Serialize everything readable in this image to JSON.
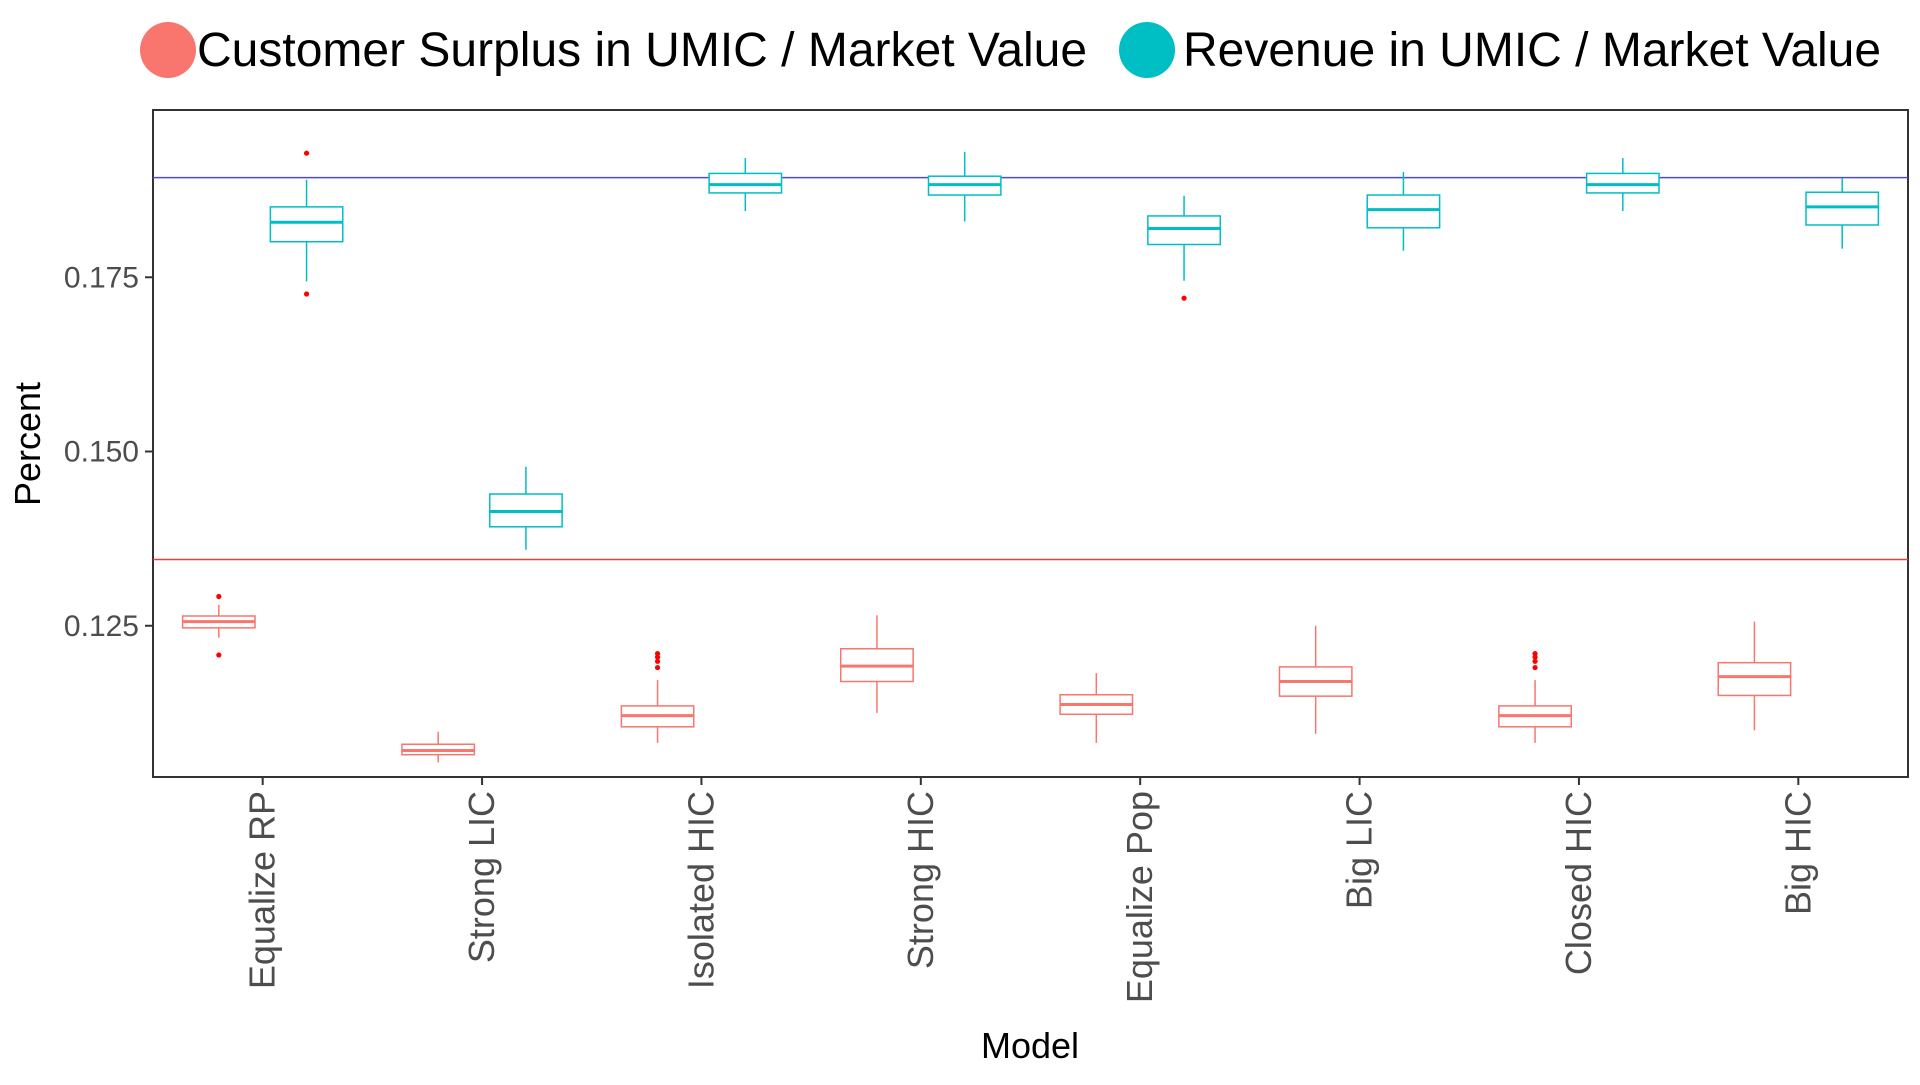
{
  "chart_data": {
    "type": "boxplot",
    "title": "",
    "xlabel": "Model",
    "ylabel": "Percent",
    "ylim": [
      0.1033,
      0.199
    ],
    "yticks": [
      0.125,
      0.15,
      0.175
    ],
    "ytick_labels": [
      "0.125",
      "0.150",
      "0.175"
    ],
    "grid": false,
    "legend_position": "top",
    "categories": [
      "Equalize RP",
      "Strong LIC",
      "Isolated HIC",
      "Strong HIC",
      "Equalize Pop",
      "Big LIC",
      "Closed HIC",
      "Big HIC"
    ],
    "series": [
      {
        "name": "Customer Surplus in UMIC / Market Value",
        "color": "#F8766D",
        "boxes": [
          {
            "min": 0.1233,
            "q1": 0.1247,
            "median": 0.1256,
            "q3": 0.1264,
            "max": 0.128,
            "outliers": [
              0.1292,
              0.1208
            ]
          },
          {
            "min": 0.1054,
            "q1": 0.1065,
            "median": 0.1071,
            "q3": 0.108,
            "max": 0.1098,
            "outliers": []
          },
          {
            "min": 0.1082,
            "q1": 0.1105,
            "median": 0.1121,
            "q3": 0.1135,
            "max": 0.1172,
            "outliers": [
              0.119,
              0.1199,
              0.1205,
              0.121
            ]
          },
          {
            "min": 0.1125,
            "q1": 0.117,
            "median": 0.1192,
            "q3": 0.1217,
            "max": 0.1265,
            "outliers": []
          },
          {
            "min": 0.1082,
            "q1": 0.1123,
            "median": 0.1137,
            "q3": 0.1151,
            "max": 0.1182,
            "outliers": []
          },
          {
            "min": 0.1095,
            "q1": 0.1149,
            "median": 0.117,
            "q3": 0.1191,
            "max": 0.125,
            "outliers": []
          },
          {
            "min": 0.1082,
            "q1": 0.1105,
            "median": 0.1121,
            "q3": 0.1135,
            "max": 0.1172,
            "outliers": [
              0.119,
              0.1199,
              0.1205,
              0.121
            ]
          },
          {
            "min": 0.11,
            "q1": 0.115,
            "median": 0.1177,
            "q3": 0.1197,
            "max": 0.1256,
            "outliers": []
          }
        ]
      },
      {
        "name": "Revenue in UMIC / Market Value",
        "color": "#00BFC4",
        "boxes": [
          {
            "min": 0.1744,
            "q1": 0.1801,
            "median": 0.1829,
            "q3": 0.1851,
            "max": 0.189,
            "outliers": [
              0.1928,
              0.1726
            ]
          },
          {
            "min": 0.1359,
            "q1": 0.1392,
            "median": 0.1414,
            "q3": 0.1439,
            "max": 0.1478,
            "outliers": []
          },
          {
            "min": 0.1845,
            "q1": 0.1871,
            "median": 0.1883,
            "q3": 0.1899,
            "max": 0.1921,
            "outliers": []
          },
          {
            "min": 0.183,
            "q1": 0.1868,
            "median": 0.1883,
            "q3": 0.1895,
            "max": 0.193,
            "outliers": []
          },
          {
            "min": 0.1745,
            "q1": 0.1797,
            "median": 0.182,
            "q3": 0.1838,
            "max": 0.1867,
            "outliers": [
              0.172
            ]
          },
          {
            "min": 0.1788,
            "q1": 0.1821,
            "median": 0.1847,
            "q3": 0.1868,
            "max": 0.1901,
            "outliers": []
          },
          {
            "min": 0.1845,
            "q1": 0.1871,
            "median": 0.1883,
            "q3": 0.1899,
            "max": 0.1921,
            "outliers": []
          },
          {
            "min": 0.1791,
            "q1": 0.1825,
            "median": 0.1851,
            "q3": 0.1872,
            "max": 0.1892,
            "outliers": []
          }
        ]
      }
    ],
    "reference_lines": [
      {
        "value": 0.1345,
        "color": "#E0443C"
      },
      {
        "value": 0.1893,
        "color": "#4B4BD6"
      }
    ],
    "outlier_color": "#FF0000"
  }
}
